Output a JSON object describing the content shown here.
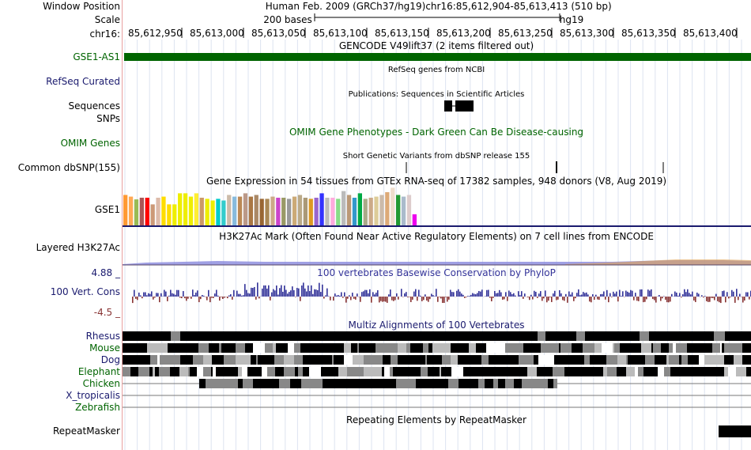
{
  "header": {
    "window_position_label": "Window Position",
    "scale_label": "Scale",
    "chrom_label": "chr16:",
    "assembly": "Human Feb. 2009 (GRCh37/hg19)",
    "position": "chr16:85,612,904-85,613,413 (510 bp)",
    "scale_bar": "200 bases",
    "db": "hg19",
    "coordinates": [
      "85,612,950",
      "85,613,000",
      "85,613,050",
      "85,613,100",
      "85,613,150",
      "85,613,200",
      "85,613,250",
      "85,613,300",
      "85,613,350",
      "85,613,400"
    ]
  },
  "tracks": {
    "gencode": {
      "title": "GENCODE V49lift37 (2 items filtered out)",
      "item": "GSE1-AS1"
    },
    "refseq": {
      "label": "RefSeq Curated",
      "title": "RefSeq genes from NCBI"
    },
    "publications": {
      "label1": "Sequences",
      "label2": "SNPs",
      "title": "Publications: Sequences in Scientific Articles"
    },
    "omim": {
      "label": "OMIM Genes",
      "title": "OMIM Gene Phenotypes - Dark Green Can Be Disease-causing"
    },
    "dbsnp": {
      "label": "Common dbSNP(155)",
      "title": "Short Genetic Variants from dbSNP release 155"
    },
    "gtex": {
      "label": "GSE1",
      "title": "Gene Expression in 54 tissues from GTEx RNA-seq of 17382 samples, 948 donors (V8, Aug 2019)"
    },
    "h3k27ac": {
      "label": "Layered H3K27Ac",
      "title": "H3K27Ac Mark (Often Found Near Active Regulatory Elements) on 7 cell lines from ENCODE"
    },
    "conservation": {
      "label": "100 Vert. Cons",
      "max": "4.88 _",
      "min": "-4.5 _",
      "title": "100 vertebrates Basewise Conservation by PhyloP"
    },
    "multiz": {
      "title": "Multiz Alignments of 100 Vertebrates",
      "species": [
        "Rhesus",
        "Mouse",
        "Dog",
        "Elephant",
        "Chicken",
        "X_tropicalis",
        "Zebrafish"
      ]
    },
    "repeatmasker": {
      "label": "RepeatMasker",
      "title": "Repeating Elements by RepeatMasker"
    }
  },
  "colors": {
    "gencode": "#006400",
    "conservation_pos": "#333399",
    "conservation_neg": "#883333",
    "h3k27ac_a": "#8080e0",
    "h3k27ac_b": "#e0a050"
  },
  "gtex_values": [
    0.55,
    0.52,
    0.47,
    0.5,
    0.5,
    0.38,
    0.5,
    0.52,
    0.38,
    0.38,
    0.58,
    0.58,
    0.52,
    0.58,
    0.5,
    0.48,
    0.45,
    0.48,
    0.45,
    0.55,
    0.52,
    0.52,
    0.58,
    0.52,
    0.55,
    0.48,
    0.48,
    0.52,
    0.5,
    0.5,
    0.48,
    0.52,
    0.55,
    0.5,
    0.48,
    0.5,
    0.58,
    0.5,
    0.5,
    0.48,
    0.62,
    0.55,
    0.5,
    0.58,
    0.48,
    0.5,
    0.52,
    0.55,
    0.6,
    0.68,
    0.55,
    0.52,
    0.55,
    0.2
  ],
  "gtex_colors": [
    "#ff9933",
    "#ffaa55",
    "#99bb55",
    "#aa5555",
    "#ff0000",
    "#cc9977",
    "#ddbbaa",
    "#ffdd00",
    "#ffdd00",
    "#eeee00",
    "#eeee00",
    "#eeee00",
    "#eeee00",
    "#ffee33",
    "#cc9966",
    "#eeee00",
    "#eeee00",
    "#00cccc",
    "#33cccc",
    "#ccbbaa",
    "#88bbdd",
    "#bb8855",
    "#bb9988",
    "#aa7744",
    "#aa8866",
    "#996633",
    "#aa8855",
    "#ccaa88",
    "#cc44cc",
    "#999966",
    "#999999",
    "#ccaa77",
    "#bbaa88",
    "#aa9977",
    "#dd9922",
    "#9966cc",
    "#3333ff",
    "#bbbbbb",
    "#ffaadd",
    "#88dd88",
    "#bbbbbb",
    "#bb9977",
    "#3399cc",
    "#00aa44",
    "#aaaa88",
    "#ccaa88",
    "#ddcc99",
    "#ccbbaa",
    "#ddaa77",
    "#eeddcc",
    "#229933",
    "#aabbcc",
    "#ddcccc",
    "#ee00ee"
  ]
}
